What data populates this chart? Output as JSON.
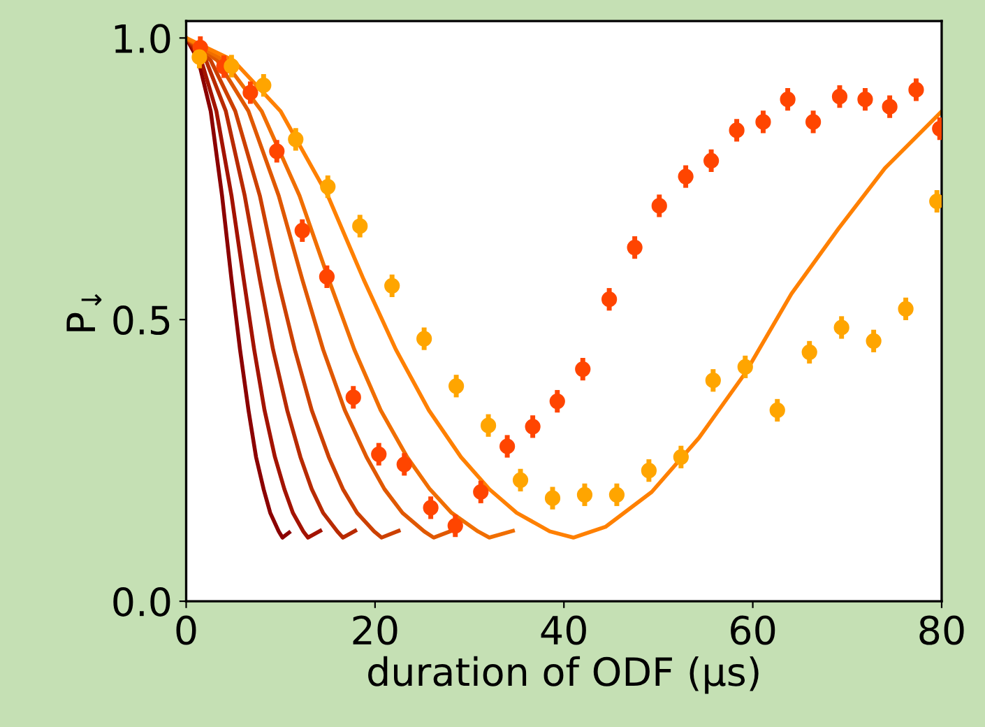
{
  "chart_data": {
    "type": "line",
    "xlabel": "duration of ODF (μs)",
    "ylabel": "P$_{↓}$",
    "xlim": [
      0,
      80
    ],
    "ylim": [
      0,
      1.03
    ],
    "xticks": [
      0,
      20,
      40,
      60,
      80
    ],
    "yticks": [
      {
        "value": 0,
        "label": "0.0"
      },
      {
        "value": 0.5,
        "label": "0.5"
      },
      {
        "value": 1,
        "label": "1.0"
      }
    ],
    "grid": false,
    "legend": false,
    "line_style": "solid",
    "series": [
      {
        "color": "#8b0000",
        "x": [
          0,
          1.3,
          2.6,
          3.8,
          4.8,
          5.7,
          6.6,
          7.4,
          8.2,
          8.9,
          9.8,
          10.2,
          10.9
        ],
        "values": [
          1.0,
          0.96,
          0.87,
          0.72,
          0.571,
          0.447,
          0.339,
          0.256,
          0.199,
          0.157,
          0.124,
          0.113,
          0.122
        ]
      },
      {
        "color": "#a31300",
        "x": [
          0,
          1.6,
          3.2,
          4.8,
          6.1,
          7.2,
          8.3,
          9.4,
          10.4,
          11.3,
          12.4,
          12.9,
          14.2
        ],
        "values": [
          1.0,
          0.96,
          0.87,
          0.72,
          0.571,
          0.447,
          0.339,
          0.256,
          0.199,
          0.157,
          0.124,
          0.113,
          0.125
        ]
      },
      {
        "color": "#b82a00",
        "x": [
          0,
          2.1,
          4.2,
          6.2,
          7.8,
          9.2,
          10.7,
          12.1,
          13.3,
          14.5,
          16.0,
          16.6,
          17.9
        ],
        "values": [
          1.0,
          0.96,
          0.87,
          0.72,
          0.571,
          0.447,
          0.339,
          0.256,
          0.199,
          0.157,
          0.124,
          0.113,
          0.125
        ]
      },
      {
        "color": "#cc4000",
        "x": [
          0,
          2.6,
          5.2,
          7.8,
          9.7,
          11.5,
          13.3,
          15.1,
          16.6,
          18.1,
          19.9,
          20.7,
          22.5
        ],
        "values": [
          1.0,
          0.96,
          0.87,
          0.72,
          0.571,
          0.447,
          0.339,
          0.256,
          0.199,
          0.157,
          0.124,
          0.113,
          0.125
        ]
      },
      {
        "color": "#e05800",
        "x": [
          0,
          3.3,
          6.6,
          9.8,
          12.3,
          14.5,
          16.8,
          19.1,
          21.0,
          22.9,
          25.2,
          26.2,
          28.1
        ],
        "values": [
          1.0,
          0.96,
          0.87,
          0.72,
          0.571,
          0.447,
          0.339,
          0.256,
          0.199,
          0.157,
          0.124,
          0.113,
          0.125
        ]
      },
      {
        "color": "#f06e00",
        "x": [
          0,
          4.0,
          8.0,
          12.0,
          15.1,
          17.8,
          20.6,
          23.4,
          25.8,
          28.1,
          30.9,
          32.1,
          34.6
        ],
        "values": [
          1.0,
          0.96,
          0.87,
          0.72,
          0.571,
          0.447,
          0.339,
          0.256,
          0.199,
          0.157,
          0.124,
          0.113,
          0.125
        ]
      },
      {
        "color": "#ff8000",
        "x": [
          0,
          5,
          10,
          15,
          18.8,
          22.2,
          25.7,
          29.1,
          32.1,
          35.0,
          38.5,
          41.0,
          44.4,
          49.3,
          54.3,
          59.2,
          64.1,
          69.1,
          74.0,
          79.9
        ],
        "values": [
          1.0,
          0.96,
          0.87,
          0.72,
          0.571,
          0.447,
          0.339,
          0.256,
          0.199,
          0.157,
          0.124,
          0.113,
          0.132,
          0.194,
          0.29,
          0.405,
          0.546,
          0.662,
          0.769,
          0.868
        ]
      },
      {
        "type": "scatter",
        "color": "#ff4500",
        "x": [
          1.5,
          4.0,
          6.8,
          9.6,
          12.3,
          14.9,
          17.7,
          20.4,
          23.1,
          25.9,
          28.5,
          31.2,
          34.0,
          36.7,
          39.3,
          42.0,
          44.8,
          47.5,
          50.1,
          52.9,
          55.6,
          58.3,
          61.1,
          63.7,
          66.4,
          69.2,
          71.9,
          74.5,
          77.3,
          79.8
        ],
        "values": [
          0.983,
          0.949,
          0.903,
          0.799,
          0.658,
          0.576,
          0.362,
          0.261,
          0.243,
          0.166,
          0.134,
          0.194,
          0.275,
          0.31,
          0.355,
          0.412,
          0.536,
          0.628,
          0.702,
          0.754,
          0.782,
          0.836,
          0.851,
          0.891,
          0.851,
          0.896,
          0.891,
          0.878,
          0.908,
          0.839
        ],
        "errors": [
          0.02,
          0.02,
          0.02,
          0.02,
          0.02,
          0.02,
          0.02,
          0.02,
          0.02,
          0.02,
          0.02,
          0.02,
          0.02,
          0.02,
          0.02,
          0.02,
          0.02,
          0.02,
          0.02,
          0.02,
          0.02,
          0.02,
          0.02,
          0.02,
          0.02,
          0.02,
          0.02,
          0.02,
          0.02,
          0.02
        ],
        "marker": "circle"
      },
      {
        "type": "scatter",
        "color": "#ffa500",
        "x": [
          1.4,
          4.8,
          8.2,
          11.6,
          15.0,
          18.4,
          21.8,
          25.2,
          28.6,
          32.0,
          35.4,
          38.8,
          42.2,
          45.6,
          49.0,
          52.4,
          55.8,
          59.2,
          62.6,
          66.0,
          69.4,
          72.8,
          76.2,
          79.5
        ],
        "values": [
          0.966,
          0.95,
          0.916,
          0.82,
          0.736,
          0.666,
          0.56,
          0.466,
          0.382,
          0.312,
          0.215,
          0.183,
          0.189,
          0.189,
          0.232,
          0.256,
          0.392,
          0.416,
          0.339,
          0.442,
          0.486,
          0.462,
          0.519,
          0.71
        ],
        "errors": [
          0.02,
          0.02,
          0.02,
          0.02,
          0.02,
          0.02,
          0.02,
          0.02,
          0.02,
          0.02,
          0.02,
          0.02,
          0.02,
          0.02,
          0.02,
          0.02,
          0.02,
          0.02,
          0.02,
          0.02,
          0.02,
          0.02,
          0.02,
          0.02
        ],
        "marker": "circle"
      }
    ]
  }
}
